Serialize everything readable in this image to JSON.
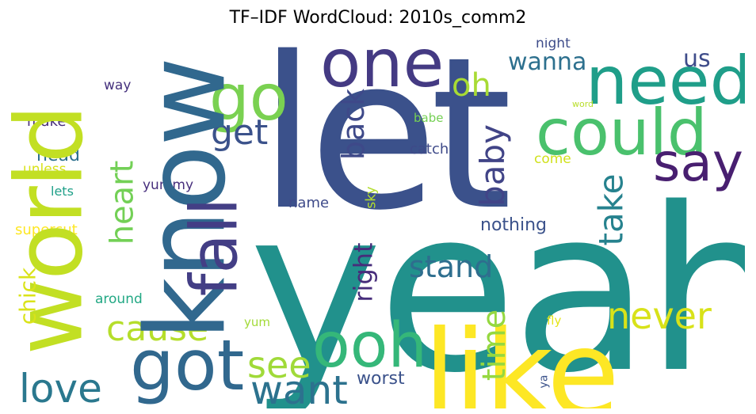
{
  "title": "TF–IDF WordCloud: 2010s_comm2",
  "words": {
    "yeah": {
      "text": "yeah",
      "color": "#21918c"
    },
    "let": {
      "text": "let",
      "color": "#3b518b"
    },
    "know": {
      "text": "know",
      "color": "#31688e"
    },
    "world": {
      "text": "world",
      "color": "#c2df23"
    },
    "like": {
      "text": "like",
      "color": "#fde725"
    },
    "one": {
      "text": "one",
      "color": "#443a83"
    },
    "need": {
      "text": "need",
      "color": "#1f9e89"
    },
    "could": {
      "text": "could",
      "color": "#4ac16d"
    },
    "go": {
      "text": "go",
      "color": "#7ad151"
    },
    "say": {
      "text": "say",
      "color": "#481f70"
    },
    "got": {
      "text": "got",
      "color": "#31688e"
    },
    "ooh": {
      "text": "ooh",
      "color": "#35b779"
    },
    "fall": {
      "text": "fall",
      "color": "#433e85"
    },
    "love": {
      "text": "love",
      "color": "#2a788e"
    },
    "want": {
      "text": "want",
      "color": "#2c728e"
    },
    "cause": {
      "text": "cause",
      "color": "#b5de2b"
    },
    "see": {
      "text": "see",
      "color": "#a0da39"
    },
    "never": {
      "text": "never",
      "color": "#d8e219"
    },
    "back": {
      "text": "back",
      "color": "#3e4989"
    },
    "baby": {
      "text": "baby",
      "color": "#414487"
    },
    "take": {
      "text": "take",
      "color": "#26828e"
    },
    "heart": {
      "text": "heart",
      "color": "#73d056"
    },
    "stand": {
      "text": "stand",
      "color": "#2e6e8e"
    },
    "time": {
      "text": "time",
      "color": "#95d840"
    },
    "right": {
      "text": "right",
      "color": "#472d7b"
    },
    "get": {
      "text": "get",
      "color": "#3b528b"
    },
    "oh": {
      "text": "oh",
      "color": "#a8db34"
    },
    "wanna": {
      "text": "wanna",
      "color": "#2d708e"
    },
    "us": {
      "text": "us",
      "color": "#3e4c8a"
    },
    "chick": {
      "text": "chick",
      "color": "#dae319"
    },
    "head": {
      "text": "head",
      "color": "#2d708e"
    },
    "worst": {
      "text": "worst",
      "color": "#3b528b"
    },
    "nothing": {
      "text": "nothing",
      "color": "#3b528b"
    },
    "name": {
      "text": "name",
      "color": "#3e4a89"
    },
    "catch": {
      "text": "catch",
      "color": "#3e4a89"
    },
    "come": {
      "text": "come",
      "color": "#d0e11c"
    },
    "babe": {
      "text": "babe",
      "color": "#75d054"
    },
    "night": {
      "text": "night",
      "color": "#3e4c8a"
    },
    "way": {
      "text": "way",
      "color": "#46327e"
    },
    "make": {
      "text": "make",
      "color": "#472d7b"
    },
    "unless": {
      "text": "unless",
      "color": "#d8e219"
    },
    "lets": {
      "text": "lets",
      "color": "#1fa088"
    },
    "yummy": {
      "text": "yummy",
      "color": "#472f7d"
    },
    "sky": {
      "text": "sky",
      "color": "#b2dd2d"
    },
    "supercut": {
      "text": "supercut",
      "color": "#fde725"
    },
    "around": {
      "text": "around",
      "color": "#22a884"
    },
    "yum": {
      "text": "yum",
      "color": "#a2da37"
    },
    "fly": {
      "text": "fly",
      "color": "#e5e419"
    },
    "ya": {
      "text": "ya",
      "color": "#3b528b"
    },
    "word": {
      "text": "word",
      "color": "#b8de29"
    }
  }
}
